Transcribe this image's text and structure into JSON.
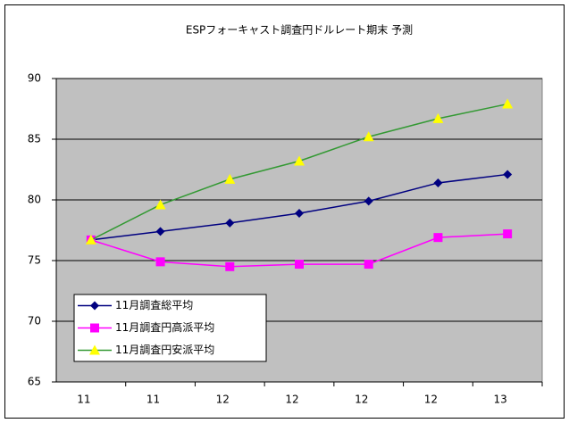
{
  "chart_data": {
    "type": "line",
    "title": "ESPフォーキャスト調査円ドルレート期末 予測",
    "categories": [
      "11",
      "11",
      "12",
      "12",
      "12",
      "12",
      "13"
    ],
    "series": [
      {
        "name": "11月調査総平均",
        "color": "#000080",
        "marker": "diamond",
        "marker_color": "#000080",
        "values": [
          76.7,
          77.4,
          78.1,
          78.9,
          79.9,
          81.4,
          82.1
        ]
      },
      {
        "name": "11月調査円高派平均",
        "color": "#ff00ff",
        "marker": "square",
        "marker_color": "#ff00ff",
        "values": [
          76.7,
          74.9,
          74.5,
          74.7,
          74.7,
          76.9,
          77.2
        ]
      },
      {
        "name": "11月調査円安派平均",
        "color": "#339933",
        "marker": "triangle",
        "marker_color": "#ffff00",
        "values": [
          76.7,
          79.6,
          81.7,
          83.2,
          85.2,
          86.7,
          87.9
        ]
      }
    ],
    "ylim": [
      65,
      90
    ],
    "yticks": [
      65,
      70,
      75,
      80,
      85,
      90
    ],
    "grid": true,
    "plot_background": "#c0c0c0",
    "legend": "lower left"
  }
}
